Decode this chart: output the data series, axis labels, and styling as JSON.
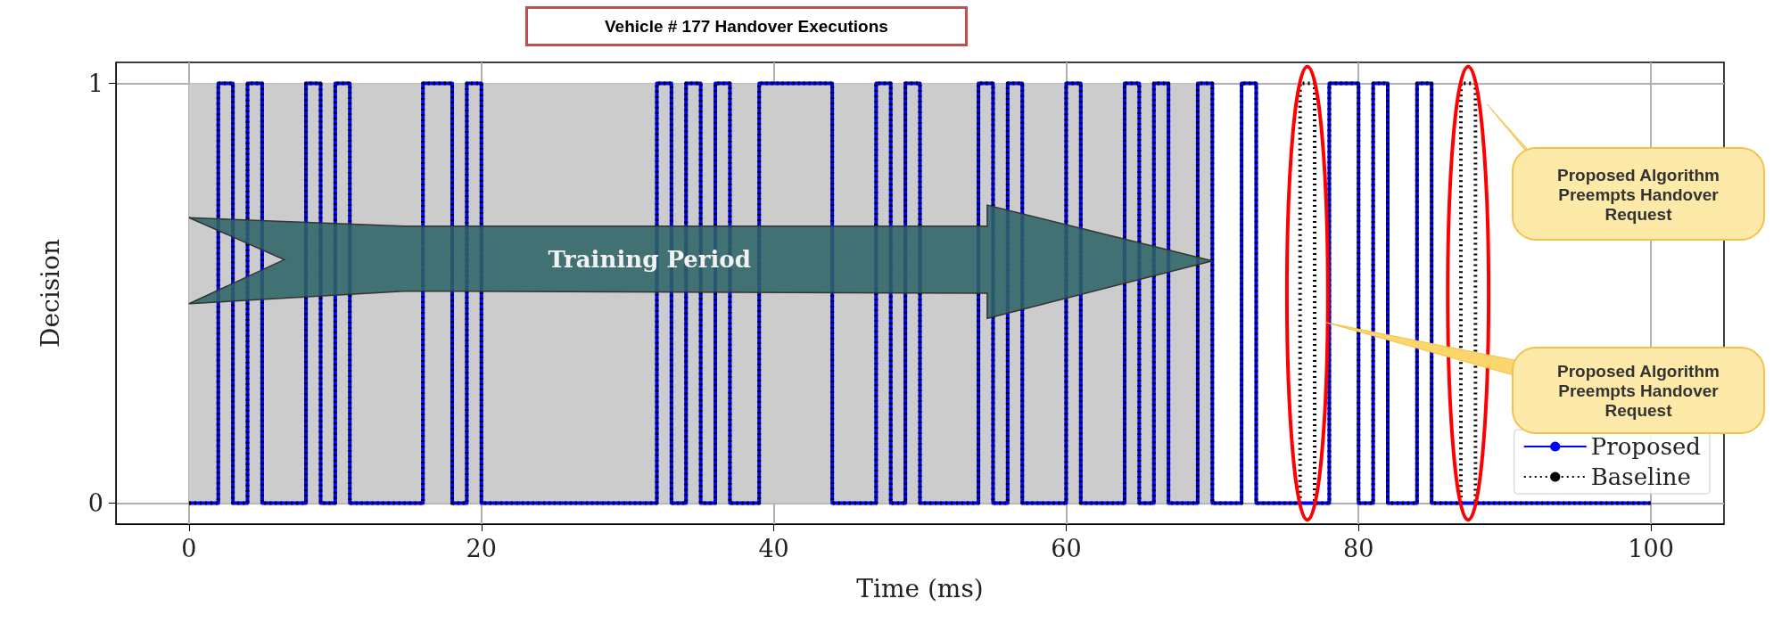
{
  "chart_data": {
    "type": "step",
    "title": "Vehicle # 177 Handover Executions",
    "xlabel": "Time (ms)",
    "ylabel": "Decision",
    "series": [
      {
        "name": "Proposed",
        "color": "#0000ff",
        "line_style": "solid",
        "x": [
          0,
          2,
          3,
          4,
          5,
          8,
          9,
          10,
          11,
          16,
          18,
          19,
          20,
          32,
          33,
          34,
          35,
          36,
          37,
          39,
          44,
          47,
          48,
          49,
          50,
          54,
          55,
          56,
          57,
          60,
          61,
          64,
          65,
          66,
          67,
          69,
          70,
          72,
          73,
          78,
          80,
          81,
          82,
          84,
          85,
          100
        ],
        "values": [
          0,
          1,
          0,
          1,
          0,
          1,
          0,
          1,
          0,
          1,
          0,
          1,
          0,
          1,
          0,
          1,
          0,
          1,
          0,
          1,
          0,
          1,
          0,
          1,
          0,
          1,
          0,
          1,
          0,
          1,
          0,
          1,
          0,
          1,
          0,
          1,
          0,
          1,
          0,
          1,
          0,
          1,
          0,
          1,
          0,
          0
        ]
      },
      {
        "name": "Baseline",
        "color": "#000000",
        "line_style": "dotted",
        "x": [
          0,
          2,
          3,
          4,
          5,
          8,
          9,
          10,
          11,
          16,
          18,
          19,
          20,
          32,
          33,
          34,
          35,
          36,
          37,
          39,
          44,
          47,
          48,
          49,
          50,
          54,
          55,
          56,
          57,
          60,
          61,
          64,
          65,
          66,
          67,
          69,
          70,
          72,
          73,
          76,
          77,
          78,
          80,
          81,
          82,
          84,
          85,
          87,
          88,
          100
        ],
        "values": [
          0,
          1,
          0,
          1,
          0,
          1,
          0,
          1,
          0,
          1,
          0,
          1,
          0,
          1,
          0,
          1,
          0,
          1,
          0,
          1,
          0,
          1,
          0,
          1,
          0,
          1,
          0,
          1,
          0,
          1,
          0,
          1,
          0,
          1,
          0,
          1,
          0,
          1,
          0,
          1,
          0,
          1,
          0,
          1,
          0,
          1,
          0,
          1,
          0,
          0
        ]
      }
    ],
    "xlim": [
      -5,
      105
    ],
    "xticks": [
      0,
      20,
      40,
      60,
      80,
      100
    ],
    "ylim": [
      -0.05,
      1.05
    ],
    "yticks": [
      0,
      1
    ],
    "bands": [
      {
        "axis": "x",
        "from": 0,
        "to": 70,
        "label": "Training Period",
        "color": "#cccccc"
      }
    ],
    "annotations": [
      "Proposed Algorithm\nPreempts Handover\nRequest",
      "Proposed Algorithm\nPreempts Handover\nRequest"
    ],
    "grid": true,
    "legend": "bottom right",
    "marker": "none"
  }
}
